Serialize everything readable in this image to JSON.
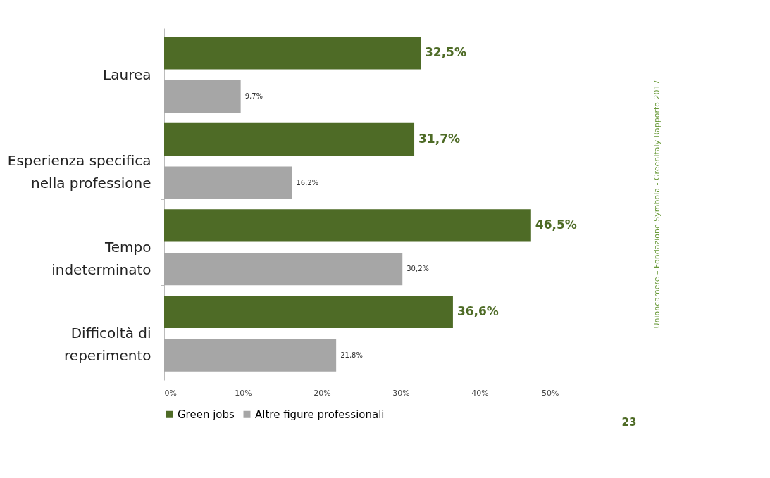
{
  "chart_data": {
    "type": "bar",
    "orientation": "horizontal",
    "categories": [
      "Laurea",
      "Esperienza specifica\nnella professione",
      "Tempo\nindeterminato",
      "Difficoltà di\nreperimento"
    ],
    "series": [
      {
        "name": "Green jobs",
        "color": "#4e6b26",
        "values": [
          32.5,
          31.7,
          46.5,
          36.6
        ],
        "value_labels": [
          "32,5%",
          "31,7%",
          "46,5%",
          "36,6%"
        ]
      },
      {
        "name": "Altre figure professionali",
        "color": "#a6a6a6",
        "values": [
          9.7,
          16.2,
          30.2,
          21.8
        ],
        "value_labels": [
          "9,7%",
          "16,2%",
          "30,2%",
          "21,8%"
        ]
      }
    ],
    "xlim": [
      0,
      50
    ],
    "xticks": [
      {
        "value": 0,
        "label": "0%"
      },
      {
        "value": 10,
        "label": "10%"
      },
      {
        "value": 20,
        "label": "20%"
      },
      {
        "value": 30,
        "label": "30%"
      },
      {
        "value": 40,
        "label": "40%"
      },
      {
        "value": 50,
        "label": "50%"
      }
    ],
    "grid": false,
    "legend": "bottom",
    "annotations": [
      "Unioncamere – Fondazione Symbola - GreenItaly Rapporto 2017",
      "23"
    ]
  }
}
